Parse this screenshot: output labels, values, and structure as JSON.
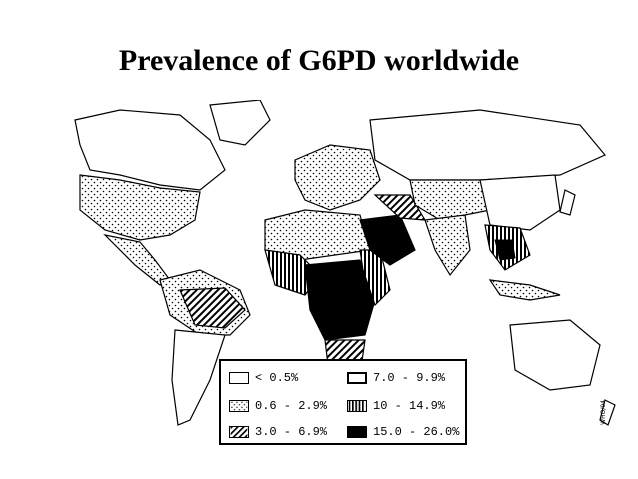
{
  "title": "Prevalence of G6PD worldwide",
  "legend": {
    "items": [
      {
        "label": "< 0.5%",
        "pattern": "blank"
      },
      {
        "label": "7.0 - 9.9%",
        "pattern": "blank-thick"
      },
      {
        "label": "0.6 - 2.9%",
        "pattern": "dots"
      },
      {
        "label": "10 - 14.9%",
        "pattern": "vertical-stripes"
      },
      {
        "label": "3.0 - 6.9%",
        "pattern": "diagonal-stripes"
      },
      {
        "label": "15.0 - 26.0%",
        "pattern": "solid-black"
      }
    ]
  },
  "credit": "WHO/94"
}
